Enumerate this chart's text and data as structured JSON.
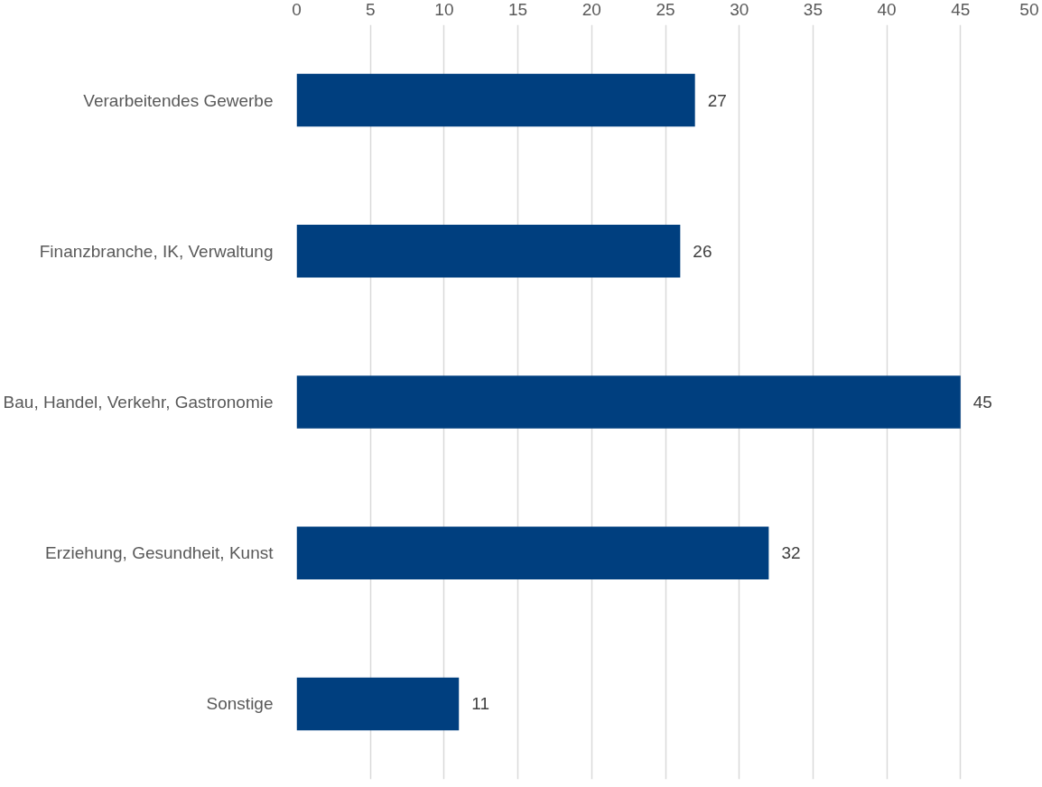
{
  "chart_data": {
    "type": "bar",
    "orientation": "horizontal",
    "categories": [
      "Verarbeitendes Gewerbe",
      "Finanzbranche, IK, Verwaltung",
      "Bau, Handel, Verkehr, Gastronomie",
      "Erziehung, Gesundheit, Kunst",
      "Sonstige"
    ],
    "values": [
      27,
      26,
      45,
      32,
      11
    ],
    "color": "#003f7f",
    "xlim": [
      0,
      50
    ],
    "xticks": [
      0,
      5,
      10,
      15,
      20,
      25,
      30,
      35,
      40,
      45,
      50
    ],
    "grid": "x",
    "data_labels": true
  }
}
